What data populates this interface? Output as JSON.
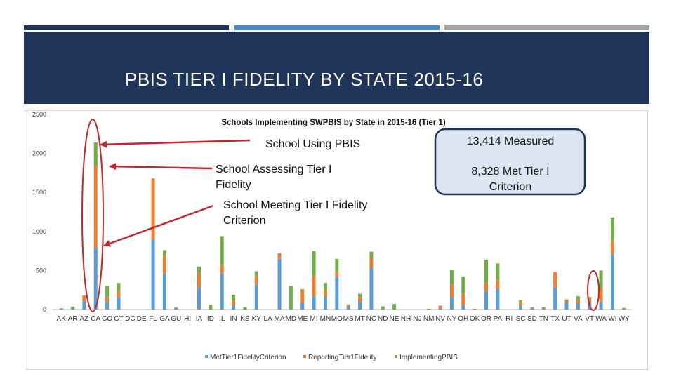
{
  "slide": {
    "title": "PBIS TIER I FIDELITY BY STATE 2015-16"
  },
  "colors": {
    "banner": "#1e3559",
    "accent_blue": "#4e88c5",
    "accent_gray": "#a5a5a5",
    "annotation": "#c0282d",
    "callout_fill": "#dce6f2",
    "callout_border": "#1e3559"
  },
  "chart_data": {
    "type": "bar",
    "stacked": true,
    "title": "Schools Implementing SWPBIS by State in 2015-16 (Tier 1)",
    "ylim": [
      0,
      2500
    ],
    "yticks": [
      0,
      500,
      1000,
      1500,
      2000,
      2500
    ],
    "legend_position": "bottom",
    "grid": false,
    "categories": [
      "AK",
      "AR",
      "AZ",
      "CA",
      "CO",
      "CT",
      "DC",
      "DE",
      "FL",
      "GA",
      "GU",
      "HI",
      "IA",
      "ID",
      "IL",
      "IN",
      "KS",
      "KY",
      "LA",
      "MA",
      "MD",
      "ME",
      "MI",
      "MN",
      "MO",
      "MS",
      "MT",
      "NC",
      "ND",
      "NE",
      "NH",
      "NJ",
      "NM",
      "NV",
      "NY",
      "OH",
      "OK",
      "OR",
      "PA",
      "RI",
      "SC",
      "SD",
      "TN",
      "TX",
      "UT",
      "VA",
      "VT",
      "WA",
      "WI",
      "WY"
    ],
    "series": [
      {
        "name": "MetTier1FidelityCriterion",
        "color": "#5b9bd5",
        "values": [
          5,
          5,
          100,
          790,
          100,
          160,
          0,
          0,
          900,
          460,
          20,
          0,
          280,
          0,
          460,
          50,
          0,
          320,
          0,
          650,
          0,
          80,
          170,
          170,
          420,
          40,
          100,
          530,
          0,
          0,
          0,
          0,
          0,
          10,
          150,
          60,
          0,
          240,
          260,
          0,
          50,
          10,
          0,
          280,
          90,
          80,
          90,
          100,
          710,
          0
        ]
      },
      {
        "name": "ReportingTier1Fidelity",
        "color": "#ed7d31",
        "values": [
          0,
          0,
          80,
          1050,
          60,
          80,
          0,
          0,
          780,
          220,
          10,
          0,
          190,
          0,
          110,
          60,
          0,
          110,
          0,
          70,
          0,
          170,
          260,
          80,
          60,
          20,
          60,
          130,
          0,
          0,
          0,
          0,
          0,
          40,
          180,
          140,
          0,
          100,
          120,
          0,
          50,
          10,
          0,
          200,
          30,
          50,
          40,
          170,
          170,
          0
        ]
      },
      {
        "name": "ImplementingPBIS",
        "color": "#70ad47",
        "values": [
          10,
          30,
          0,
          300,
          140,
          100,
          0,
          0,
          0,
          80,
          0,
          0,
          80,
          60,
          370,
          80,
          30,
          60,
          0,
          0,
          300,
          10,
          320,
          90,
          170,
          0,
          40,
          80,
          40,
          70,
          0,
          0,
          10,
          0,
          180,
          220,
          10,
          300,
          210,
          0,
          20,
          10,
          30,
          0,
          10,
          40,
          30,
          230,
          300,
          20
        ]
      }
    ]
  },
  "annotations": {
    "using": "School Using PBIS",
    "assessing_line1": "School Assessing Tier I",
    "assessing_line2": "Fidelity",
    "meeting_line1": "School Meeting Tier I Fidelity",
    "meeting_line2": "Criterion"
  },
  "callout": {
    "measured": "13,414 Measured",
    "met_line1": "8,328 Met Tier I",
    "met_line2": "Criterion"
  }
}
